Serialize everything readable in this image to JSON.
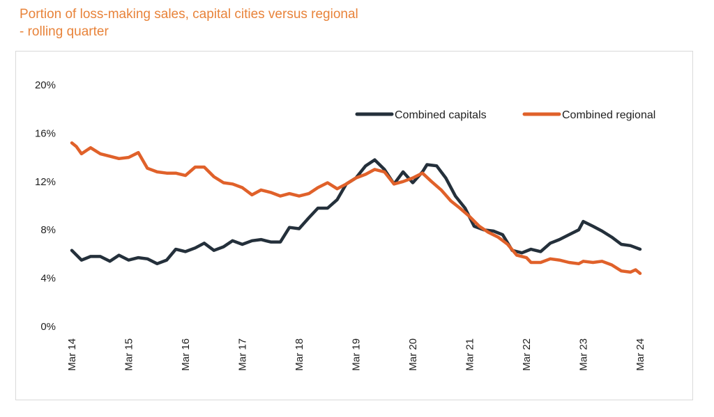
{
  "chart_data": {
    "type": "line",
    "title_line1": "Portion of loss-making sales, capital cities versus regional",
    "title_line2": "- rolling quarter",
    "xlabel": "",
    "ylabel": "",
    "ylim": [
      0,
      20
    ],
    "y_ticks": [
      "0%",
      "4%",
      "8%",
      "12%",
      "16%",
      "20%"
    ],
    "y_tick_values": [
      0,
      4,
      8,
      12,
      16,
      20
    ],
    "x_ticks": [
      "Mar 14",
      "Mar 15",
      "Mar 16",
      "Mar 17",
      "Mar 18",
      "Mar 19",
      "Mar 20",
      "Mar 21",
      "Mar 22",
      "Mar 23",
      "Mar 24"
    ],
    "x_tick_values": [
      2014,
      2015,
      2016,
      2017,
      2018,
      2019,
      2020,
      2021,
      2022,
      2023,
      2024
    ],
    "xlim": [
      2014,
      2024
    ],
    "grid": false,
    "legend": "top-right",
    "series": [
      {
        "name": "Combined capitals",
        "color": "#24303b",
        "points": [
          [
            2014.0,
            6.3
          ],
          [
            2014.17,
            5.5
          ],
          [
            2014.33,
            5.8
          ],
          [
            2014.5,
            5.8
          ],
          [
            2014.67,
            5.4
          ],
          [
            2014.83,
            5.9
          ],
          [
            2015.0,
            5.5
          ],
          [
            2015.17,
            5.7
          ],
          [
            2015.33,
            5.6
          ],
          [
            2015.5,
            5.2
          ],
          [
            2015.67,
            5.5
          ],
          [
            2015.83,
            6.4
          ],
          [
            2016.0,
            6.2
          ],
          [
            2016.17,
            6.5
          ],
          [
            2016.33,
            6.9
          ],
          [
            2016.5,
            6.3
          ],
          [
            2016.67,
            6.6
          ],
          [
            2016.83,
            7.1
          ],
          [
            2017.0,
            6.8
          ],
          [
            2017.17,
            7.1
          ],
          [
            2017.33,
            7.2
          ],
          [
            2017.5,
            7.0
          ],
          [
            2017.67,
            7.0
          ],
          [
            2017.83,
            8.2
          ],
          [
            2018.0,
            8.1
          ],
          [
            2018.17,
            9.0
          ],
          [
            2018.33,
            9.8
          ],
          [
            2018.5,
            9.8
          ],
          [
            2018.67,
            10.5
          ],
          [
            2018.83,
            11.8
          ],
          [
            2019.0,
            12.3
          ],
          [
            2019.17,
            13.3
          ],
          [
            2019.33,
            13.8
          ],
          [
            2019.5,
            13.0
          ],
          [
            2019.67,
            11.8
          ],
          [
            2019.83,
            12.8
          ],
          [
            2020.0,
            11.9
          ],
          [
            2020.17,
            12.8
          ],
          [
            2020.25,
            13.4
          ],
          [
            2020.42,
            13.3
          ],
          [
            2020.58,
            12.3
          ],
          [
            2020.75,
            10.8
          ],
          [
            2020.92,
            9.8
          ],
          [
            2021.08,
            8.3
          ],
          [
            2021.25,
            8.0
          ],
          [
            2021.42,
            7.9
          ],
          [
            2021.58,
            7.6
          ],
          [
            2021.75,
            6.3
          ],
          [
            2021.92,
            6.1
          ],
          [
            2022.08,
            6.4
          ],
          [
            2022.25,
            6.2
          ],
          [
            2022.42,
            6.9
          ],
          [
            2022.58,
            7.2
          ],
          [
            2022.75,
            7.6
          ],
          [
            2022.92,
            8.0
          ],
          [
            2023.0,
            8.7
          ],
          [
            2023.17,
            8.3
          ],
          [
            2023.33,
            7.9
          ],
          [
            2023.5,
            7.4
          ],
          [
            2023.67,
            6.8
          ],
          [
            2023.83,
            6.7
          ],
          [
            2024.0,
            6.4
          ]
        ]
      },
      {
        "name": "Combined regional",
        "color": "#e0612a",
        "points": [
          [
            2014.0,
            15.2
          ],
          [
            2014.08,
            14.9
          ],
          [
            2014.17,
            14.3
          ],
          [
            2014.33,
            14.8
          ],
          [
            2014.5,
            14.3
          ],
          [
            2014.67,
            14.1
          ],
          [
            2014.83,
            13.9
          ],
          [
            2015.0,
            14.0
          ],
          [
            2015.17,
            14.4
          ],
          [
            2015.33,
            13.1
          ],
          [
            2015.5,
            12.8
          ],
          [
            2015.67,
            12.7
          ],
          [
            2015.83,
            12.7
          ],
          [
            2016.0,
            12.5
          ],
          [
            2016.17,
            13.2
          ],
          [
            2016.33,
            13.2
          ],
          [
            2016.5,
            12.4
          ],
          [
            2016.67,
            11.9
          ],
          [
            2016.83,
            11.8
          ],
          [
            2017.0,
            11.5
          ],
          [
            2017.17,
            10.9
          ],
          [
            2017.33,
            11.3
          ],
          [
            2017.5,
            11.1
          ],
          [
            2017.67,
            10.8
          ],
          [
            2017.83,
            11.0
          ],
          [
            2018.0,
            10.8
          ],
          [
            2018.17,
            11.0
          ],
          [
            2018.33,
            11.5
          ],
          [
            2018.5,
            11.9
          ],
          [
            2018.67,
            11.4
          ],
          [
            2018.83,
            11.8
          ],
          [
            2019.0,
            12.3
          ],
          [
            2019.17,
            12.6
          ],
          [
            2019.33,
            13.0
          ],
          [
            2019.5,
            12.8
          ],
          [
            2019.67,
            11.8
          ],
          [
            2019.83,
            12.0
          ],
          [
            2020.0,
            12.3
          ],
          [
            2020.17,
            12.7
          ],
          [
            2020.33,
            12.0
          ],
          [
            2020.5,
            11.3
          ],
          [
            2020.67,
            10.4
          ],
          [
            2020.83,
            9.8
          ],
          [
            2021.0,
            9.1
          ],
          [
            2021.17,
            8.3
          ],
          [
            2021.33,
            7.8
          ],
          [
            2021.5,
            7.4
          ],
          [
            2021.67,
            6.8
          ],
          [
            2021.83,
            5.9
          ],
          [
            2022.0,
            5.7
          ],
          [
            2022.08,
            5.3
          ],
          [
            2022.25,
            5.3
          ],
          [
            2022.42,
            5.6
          ],
          [
            2022.58,
            5.5
          ],
          [
            2022.75,
            5.3
          ],
          [
            2022.92,
            5.2
          ],
          [
            2023.0,
            5.4
          ],
          [
            2023.17,
            5.3
          ],
          [
            2023.33,
            5.4
          ],
          [
            2023.5,
            5.1
          ],
          [
            2023.67,
            4.6
          ],
          [
            2023.83,
            4.5
          ],
          [
            2023.92,
            4.7
          ],
          [
            2024.0,
            4.4
          ]
        ]
      }
    ]
  }
}
